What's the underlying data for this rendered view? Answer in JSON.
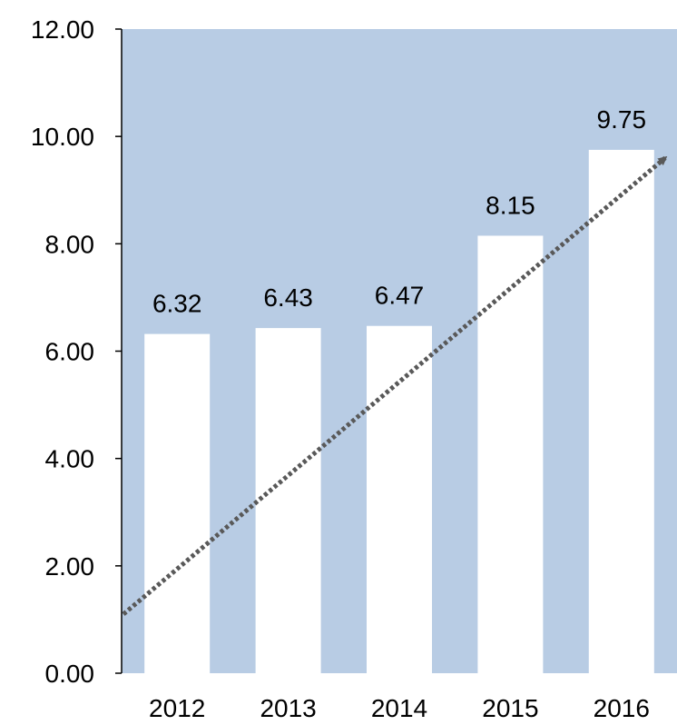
{
  "chart_data": {
    "type": "bar",
    "categories": [
      "2012",
      "2013",
      "2014",
      "2015",
      "2016"
    ],
    "values": [
      6.32,
      6.43,
      6.47,
      8.15,
      9.75
    ],
    "value_labels": [
      "6.32",
      "6.43",
      "6.47",
      "8.15",
      "9.75"
    ],
    "y_ticks": [
      "0.00",
      "2.00",
      "4.00",
      "6.00",
      "8.00",
      "10.00",
      "12.00"
    ],
    "ylim": [
      0,
      12
    ],
    "grid": false,
    "legend": "none",
    "trend_arrow": {
      "style": "dotted",
      "start_value": 1.1,
      "end_value": 9.6
    },
    "colors": {
      "plot_background": "#b8cce4",
      "bar_fill": "#ffffff",
      "trend_line": "#595959",
      "axis": "#000000"
    }
  }
}
